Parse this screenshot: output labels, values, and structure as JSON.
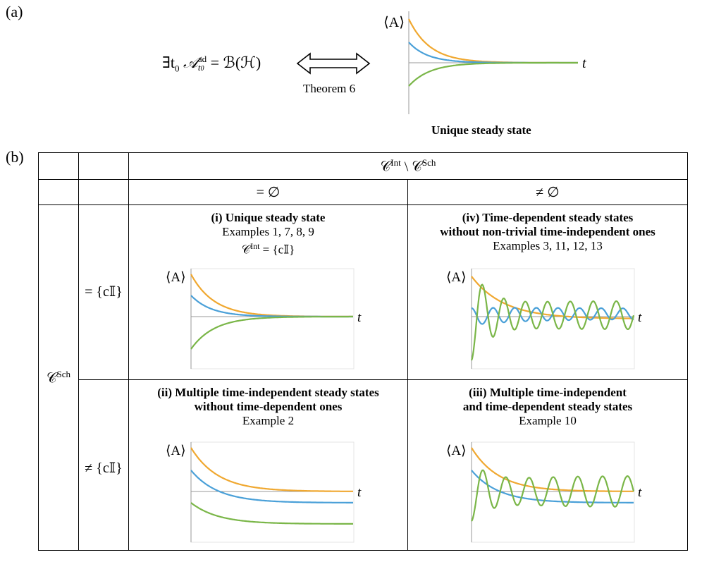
{
  "panel_a": {
    "label": "(a)",
    "condition": "∃t₀ 𝒜ᵃᵈ_t₀ = ℬ(ℋ)",
    "condition_main": "∃t",
    "condition_sub0": "0",
    "condition_A": "𝒜",
    "condition_sup": "ad",
    "condition_subt": "t",
    "condition_subt0": "0",
    "condition_rhs": " = ℬ(ℋ)",
    "theorem": "Theorem 6",
    "plot_caption": "Unique steady state",
    "y_axis_label": "⟨A⟩",
    "x_axis_label": "t"
  },
  "panel_b": {
    "label": "(b)",
    "col_header": "𝒞ᴵⁿᵗ \\ 𝒞ˢᶜʰ",
    "col_header_main": "𝒞",
    "col_header_sup1": "Int",
    "col_header_mid": " \\ 𝒞",
    "col_header_sup2": "Sch",
    "col_empty": "= ∅",
    "col_nonempty": "≠ ∅",
    "row_header_main": "𝒞",
    "row_header_sup": "Sch",
    "row_eq": "= {c𝕀}",
    "row_neq": "≠ {c𝕀}",
    "cells": {
      "i": {
        "title": "(i) Unique steady state",
        "examples": "Examples 1, 7, 8, 9",
        "extra_main": "𝒞",
        "extra_sup": "Int",
        "extra_rhs": " = {c𝕀}"
      },
      "iv": {
        "title_line1": "(iv) Time-dependent steady states",
        "title_line2": "without non-trivial time-independent ones",
        "examples": "Examples 3, 11, 12, 13"
      },
      "ii": {
        "title_line1": "(ii) Multiple time-independent steady states",
        "title_line2": "without time-dependent ones",
        "examples": "Example 2"
      },
      "iii": {
        "title_line1": "(iii) Multiple time-independent",
        "title_line2": "and time-dependent steady states",
        "examples": "Example 10"
      }
    },
    "y_axis_label": "⟨A⟩",
    "x_axis_label": "t"
  },
  "colors": {
    "orange": "#f0a830",
    "blue": "#4aa0d8",
    "green": "#7ab648",
    "axis": "#999999"
  }
}
